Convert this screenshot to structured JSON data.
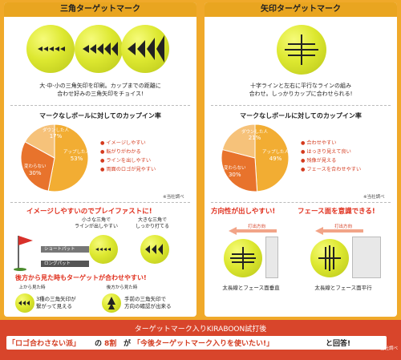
{
  "left": {
    "header": "三角ターゲットマーク",
    "desc_line1": "大·中·小の三角矢印を印刷。カップまでの距離に",
    "desc_line2": "合わせ好みの三角矢印をチョイス!",
    "survey_title": "マークなしボールに対してのカップイン率",
    "pie": {
      "labels": [
        "ダウンした人",
        "変わらない",
        "アップした人"
      ],
      "values": [
        "17%",
        "30%",
        "53%"
      ],
      "fractions": [
        0.17,
        0.3,
        0.53
      ],
      "colors": [
        "#f6c27a",
        "#e8732c",
        "#f2ad33"
      ]
    },
    "legend": [
      "イメージしやすい",
      "転がりがわかる",
      "ラインを出しやすい",
      "両面のロゴが見やすい"
    ],
    "source": "※当社調べ",
    "play_fast": "イメージしやすいのでプレイファストに!",
    "small_note": "小さな三角で\nラインが出しやすい",
    "big_note": "大きな三角で\nしっかり打てる",
    "bar_short": "ショートパット",
    "bar_long": "ロングパット",
    "rear_title": "後方から見た時もターゲットが合わせやすい!",
    "above_label": "上から見た時",
    "behind_label": "後方から見た時",
    "above_desc": "3種の三角矢印が\n繋がって見える",
    "behind_desc": "手前の三角矢印で\n方向の確認が出来る"
  },
  "right": {
    "header": "矢印ターゲットマーク",
    "desc_line1": "十字ラインと左右に平行なラインの組み",
    "desc_line2": "合わせ。しっかりカップに合わせられる!",
    "survey_title": "マークなしボールに対してのカップイン率",
    "pie": {
      "labels": [
        "ダウンした人",
        "変わらない",
        "アップした人"
      ],
      "values": [
        "21%",
        "30%",
        "49%"
      ],
      "fractions": [
        0.21,
        0.3,
        0.49
      ],
      "colors": [
        "#f6c27a",
        "#e8732c",
        "#f2ad33"
      ]
    },
    "legend": [
      "合わせやすい",
      "はっきり見えて良い",
      "残像が見える",
      "フェースを合わせやすい"
    ],
    "source": "※当社調べ",
    "direction": "方向性が出しやすい!",
    "face": "フェース面を意識できる!",
    "arrow_dir_1": "打出方向",
    "arrow_dir_2": "打出方向",
    "caption_1": "太長線とフェース面垂直",
    "caption_2": "太長線とフェース面平行"
  },
  "bottom": {
    "line1": "ターゲットマーク入りKIRABOON試打後",
    "q1": "「ロゴ合わさない派」",
    "t1": "の",
    "pct": "8割",
    "t2": "が",
    "q2": "「今後ターゲットマーク入りを使いたい!」",
    "t3": "と回答!",
    "source": "※当社調べ"
  }
}
